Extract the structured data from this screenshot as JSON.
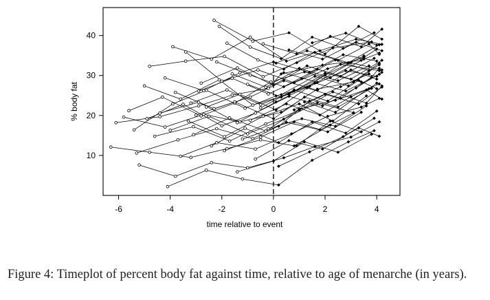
{
  "caption": "Figure 4: Timeplot of percent body fat against time, relative to age of menarche (in years).",
  "chart_data": {
    "type": "line",
    "xlabel": "time relative to event",
    "ylabel": "% body fat",
    "xlim": [
      -6.6,
      4.9
    ],
    "ylim": [
      0,
      47
    ],
    "xticks": [
      -6,
      -4,
      -2,
      0,
      2,
      4
    ],
    "yticks": [
      10,
      20,
      30,
      40
    ],
    "event_line_x": 0,
    "grid": false,
    "marker_before_event": "open-circle",
    "marker_after_event": "filled-diamond",
    "series": [
      {
        "x": [
          -6.1,
          -4.4,
          -2.9,
          -1.6,
          -0.2,
          0.3,
          1.9,
          3.4
        ],
        "y": [
          18.2,
          19.7,
          22.4,
          25.1,
          26.8,
          30.4,
          32.6,
          33.8
        ]
      },
      {
        "x": [
          -5.4,
          -3.9,
          -2.6,
          -1.1,
          0.1,
          1.4,
          2.8,
          4.0
        ],
        "y": [
          16.4,
          22.9,
          26.3,
          21.8,
          24.9,
          27.3,
          31.2,
          29.8
        ]
      },
      {
        "x": [
          -5.8,
          -4.2,
          -2.7,
          -1.3,
          0.3,
          1.7,
          3.1,
          4.1
        ],
        "y": [
          19.6,
          17.1,
          20.3,
          18.4,
          20.8,
          26.6,
          28.4,
          33.1
        ]
      },
      {
        "x": [
          -5.0,
          -3.6,
          -2.1,
          -0.8,
          0.6,
          2.0,
          3.5
        ],
        "y": [
          27.4,
          24.1,
          28.9,
          22.6,
          25.3,
          30.1,
          34.9
        ]
      },
      {
        "x": [
          -4.8,
          -3.4,
          -1.9,
          -0.4,
          0.9,
          2.3,
          3.8
        ],
        "y": [
          32.3,
          33.6,
          34.8,
          29.7,
          33.2,
          36.9,
          38.4
        ]
      },
      {
        "x": [
          -4.4,
          -2.9,
          -1.4,
          0.1,
          1.3,
          2.6,
          4.1
        ],
        "y": [
          20.6,
          23.3,
          18.2,
          23.4,
          27.1,
          32.8,
          31.2
        ]
      },
      {
        "x": [
          -3.9,
          -2.4,
          -0.9,
          0.5,
          1.8,
          3.2,
          4.2
        ],
        "y": [
          37.2,
          34.1,
          39.6,
          33.6,
          36.2,
          39.1,
          37.8
        ]
      },
      {
        "x": [
          -3.6,
          -2.2,
          -0.7,
          0.7,
          2.1,
          3.4,
          4.1
        ],
        "y": [
          9.8,
          13.2,
          11.6,
          15.4,
          19.8,
          22.1,
          24.3
        ]
      },
      {
        "x": [
          -3.1,
          -1.7,
          -0.3,
          1.0,
          2.4,
          3.7,
          4.0
        ],
        "y": [
          15.2,
          19.4,
          16.1,
          21.6,
          23.8,
          26.7,
          28.1
        ]
      },
      {
        "x": [
          -6.3,
          -4.8,
          -3.2,
          -1.8,
          -0.5,
          0.8,
          2.2
        ],
        "y": [
          12.1,
          10.8,
          9.5,
          11.7,
          13.9,
          12.4,
          17.6
        ]
      },
      {
        "x": [
          -5.2,
          -3.8,
          -2.4,
          -1.0,
          0.4,
          1.6,
          3.0,
          4.1
        ],
        "y": [
          7.6,
          4.8,
          8.2,
          6.9,
          9.4,
          12.2,
          14.6,
          18.4
        ]
      },
      {
        "x": [
          -4.1,
          -2.6,
          -1.2,
          0.2,
          1.5,
          2.9,
          3.9
        ],
        "y": [
          2.2,
          6.3,
          4.1,
          2.6,
          8.8,
          13.4,
          16.2
        ]
      },
      {
        "x": [
          -2.3,
          -0.8,
          0.6,
          2.0,
          3.3,
          4.2
        ],
        "y": [
          43.8,
          38.6,
          40.7,
          35.4,
          42.3,
          39.1
        ]
      },
      {
        "x": [
          -2.1,
          -0.9,
          0.3,
          1.5,
          2.7,
          3.9
        ],
        "y": [
          42.3,
          37.1,
          34.2,
          39.6,
          36.8,
          40.7
        ]
      },
      {
        "x": [
          -1.8,
          -0.6,
          0.4,
          1.6,
          2.9,
          4.1
        ],
        "y": [
          38.1,
          33.9,
          31.6,
          35.8,
          33.2,
          37.7
        ]
      },
      {
        "x": [
          -3.4,
          -2.0,
          -0.6,
          0.8,
          2.1,
          3.5,
          4.0
        ],
        "y": [
          35.9,
          28.6,
          31.4,
          28.2,
          31.7,
          34.5,
          36.6
        ]
      },
      {
        "x": [
          -1.2,
          0.2,
          1.4,
          2.6,
          3.7
        ],
        "y": [
          14.1,
          17.3,
          23.6,
          27.2,
          30.4
        ]
      },
      {
        "x": [
          -2.6,
          -1.3,
          0.1,
          1.3,
          2.6,
          3.8,
          4.1
        ],
        "y": [
          22.1,
          25.3,
          21.4,
          26.9,
          24.3,
          29.6,
          31.8
        ]
      },
      {
        "x": [
          -3.3,
          -1.9,
          -0.4,
          1.0,
          2.3,
          3.6
        ],
        "y": [
          18.6,
          14.7,
          19.8,
          22.9,
          18.6,
          24.9
        ]
      },
      {
        "x": [
          -5.6,
          -4.3,
          -2.8,
          -1.5,
          -0.1,
          1.2,
          2.5,
          3.7
        ],
        "y": [
          21.2,
          24.6,
          19.9,
          23.1,
          28.4,
          30.9,
          28.7,
          32.4
        ]
      },
      {
        "x": [
          -4.6,
          -3.1,
          -1.7,
          -0.3,
          1.0,
          2.3,
          3.6,
          4.2
        ],
        "y": [
          14.8,
          17.2,
          13.6,
          17.9,
          21.3,
          25.9,
          23.1,
          27.4
        ]
      },
      {
        "x": [
          -2.9,
          -1.6,
          -0.2,
          1.1,
          2.4,
          3.7
        ],
        "y": [
          26.1,
          29.3,
          25.4,
          29.2,
          33.9,
          31.2
        ]
      },
      {
        "x": [
          -1.6,
          -0.3,
          1.0,
          2.2,
          3.5,
          4.1
        ],
        "y": [
          30.4,
          27.1,
          31.8,
          29.5,
          34.1,
          35.6
        ]
      },
      {
        "x": [
          -3.8,
          -2.3,
          -0.9,
          0.4,
          1.7,
          3.0,
          4.0
        ],
        "y": [
          25.8,
          21.7,
          24.6,
          28.7,
          26.3,
          31.4,
          29.1
        ]
      },
      {
        "x": [
          -4.9,
          -3.5,
          -2.0,
          -0.7,
          0.6,
          1.9,
          3.2,
          4.2
        ],
        "y": [
          19.2,
          22.8,
          17.4,
          20.6,
          24.8,
          22.4,
          26.9,
          30.8
        ]
      },
      {
        "x": [
          -2.4,
          -1.1,
          0.2,
          1.5,
          2.8,
          4.0
        ],
        "y": [
          12.4,
          16.8,
          13.2,
          18.4,
          15.6,
          21.1
        ]
      },
      {
        "x": [
          -1.4,
          0.0,
          1.2,
          2.5,
          3.8
        ],
        "y": [
          5.9,
          8.6,
          13.4,
          10.8,
          15.3
        ]
      },
      {
        "x": [
          -0.9,
          0.5,
          1.8,
          3.0,
          4.1
        ],
        "y": [
          18.8,
          22.9,
          20.1,
          24.7,
          27.9
        ]
      },
      {
        "x": [
          -5.3,
          -3.7,
          -2.2,
          -0.8,
          0.5,
          1.8,
          3.1
        ],
        "y": [
          10.6,
          13.9,
          16.7,
          14.2,
          18.3,
          16.4,
          20.6
        ]
      },
      {
        "x": [
          -4.2,
          -2.7,
          -1.3,
          0.0,
          1.4,
          2.7,
          4.0
        ],
        "y": [
          29.4,
          26.2,
          30.7,
          33.4,
          30.8,
          35.2,
          33.6
        ]
      },
      {
        "x": [
          0.3,
          1.6,
          2.9,
          4.1
        ],
        "y": [
          25.2,
          29.8,
          27.4,
          32.7
        ]
      },
      {
        "x": [
          0.6,
          1.9,
          3.2,
          4.2
        ],
        "y": [
          36.4,
          34.1,
          38.3,
          36.2
        ]
      },
      {
        "x": [
          0.9,
          2.2,
          3.4
        ],
        "y": [
          12.4,
          18.6,
          15.9
        ]
      },
      {
        "x": [
          1.2,
          2.4,
          3.6,
          4.2
        ],
        "y": [
          23.4,
          20.8,
          26.4,
          24.1
        ]
      },
      {
        "x": [
          -0.5,
          0.8,
          2.1,
          3.3,
          4.0
        ],
        "y": [
          21.9,
          26.4,
          23.6,
          28.8,
          26.7
        ]
      },
      {
        "x": [
          0.4,
          1.7,
          3.0,
          4.2
        ],
        "y": [
          30.7,
          28.3,
          33.2,
          31.4
        ]
      },
      {
        "x": [
          -0.2,
          1.1,
          2.4,
          3.6
        ],
        "y": [
          16.7,
          19.2,
          17.3,
          22.4
        ]
      },
      {
        "x": [
          -1.0,
          0.3,
          1.6,
          2.8,
          4.1
        ],
        "y": [
          27.8,
          24.6,
          28.1,
          26.1,
          30.3
        ]
      },
      {
        "x": [
          -2.2,
          -0.9,
          0.4,
          1.7,
          3.0,
          4.2
        ],
        "y": [
          33.4,
          30.1,
          27.2,
          31.6,
          29.1,
          33.8
        ]
      },
      {
        "x": [
          -3.2,
          -1.8,
          -0.5,
          0.8,
          2.0,
          3.4
        ],
        "y": [
          23.1,
          26.4,
          22.7,
          26.1,
          30.6,
          28.4
        ]
      },
      {
        "x": [
          -0.7,
          0.6,
          1.9,
          3.3,
          4.1
        ],
        "y": [
          9.1,
          13.7,
          11.6,
          16.9,
          14.8
        ]
      },
      {
        "x": [
          -4.0,
          -2.5,
          -1.0,
          0.4,
          1.7,
          3.1
        ],
        "y": [
          16.3,
          19.8,
          15.4,
          19.1,
          23.2,
          20.7
        ]
      },
      {
        "x": [
          -0.4,
          0.9,
          2.2,
          3.4,
          4.2
        ],
        "y": [
          37.9,
          35.4,
          39.8,
          37.2,
          41.6
        ]
      },
      {
        "x": [
          -2.8,
          -1.4,
          0.0,
          1.3,
          2.6,
          3.9
        ],
        "y": [
          28.1,
          31.9,
          27.6,
          32.4,
          29.8,
          34.3
        ]
      },
      {
        "x": [
          0.2,
          1.4,
          2.7,
          3.9
        ],
        "y": [
          7.3,
          10.9,
          14.7,
          19.3
        ]
      },
      {
        "x": [
          0.8,
          2.0,
          3.3,
          4.2
        ],
        "y": [
          21.4,
          25.3,
          22.9,
          27.1
        ]
      },
      {
        "x": [
          1.5,
          2.8,
          4.0
        ],
        "y": [
          38.2,
          40.6,
          37.6
        ]
      },
      {
        "x": [
          -1.9,
          -0.5,
          0.8,
          2.1,
          3.4
        ],
        "y": [
          11.2,
          14.6,
          18.4,
          15.9,
          20.8
        ]
      },
      {
        "x": [
          0.1,
          1.3,
          2.5,
          3.7,
          4.1
        ],
        "y": [
          33.1,
          36.2,
          33.8,
          37.9,
          35.3
        ]
      },
      {
        "x": [
          -3.0,
          -1.5,
          0.0,
          1.2,
          2.5,
          3.8
        ],
        "y": [
          20.1,
          23.4,
          19.2,
          24.6,
          22.1,
          26.8
        ]
      }
    ]
  }
}
